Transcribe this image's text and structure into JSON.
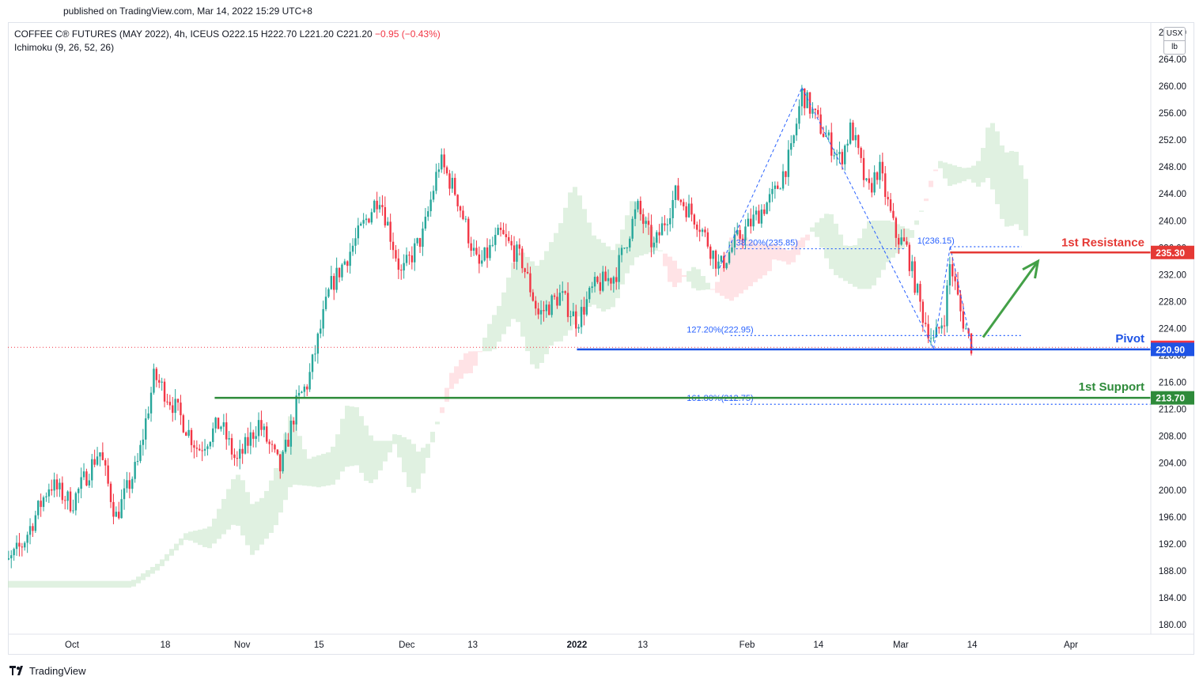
{
  "header": {
    "published": "published on TradingView.com, Mar 14, 2022 15:29 UTC+8"
  },
  "legend": {
    "symbol": "COFFEE C® FUTURES (MAY 2022), 4h, ICEUS",
    "open": "O222.15",
    "high": "H222.70",
    "low": "L221.20",
    "close": "C221.20",
    "change": "−0.95 (−0.43%)",
    "indicator": "Ichimoku (9, 26, 52, 26)"
  },
  "currency": {
    "unit1": "USX",
    "unit2": "lb"
  },
  "footer": {
    "brand": "TradingView"
  },
  "colors": {
    "up": "#089981",
    "upCandle": "#26a69a",
    "down": "#f23645",
    "resistance": "#e53935",
    "support": "#2e8b3a",
    "pivot": "#1e53e5",
    "fib": "#2962ff",
    "cloudBull": "#c8e6c9",
    "cloudBear": "#ffcdd2"
  },
  "chart_data": {
    "type": "candlestick",
    "title": "COFFEE C® FUTURES (MAY 2022), 4h, ICEUS",
    "ylim": [
      178,
      268
    ],
    "y_ticks": [
      180,
      184,
      188,
      192,
      196,
      200,
      204,
      208,
      212,
      216,
      220,
      224,
      228,
      232,
      236,
      240,
      244,
      248,
      252,
      256,
      260,
      264,
      268
    ],
    "y_tick_labels": [
      "180.00",
      "184.00",
      "188.00",
      "192.00",
      "196.00",
      "200.00",
      "204.00",
      "208.00",
      "212.00",
      "216.00",
      "220.00",
      "224.00",
      "228.00",
      "232.00",
      "236.00",
      "240.00",
      "244.00",
      "248.00",
      "252.00",
      "256.00",
      "260.00",
      "264.00",
      "268.00"
    ],
    "x_ticks": [
      {
        "date": "2021-10-01",
        "label": "Oct"
      },
      {
        "date": "2021-10-18",
        "label": "18"
      },
      {
        "date": "2021-11-01",
        "label": "Nov"
      },
      {
        "date": "2021-11-15",
        "label": "15"
      },
      {
        "date": "2021-12-01",
        "label": "Dec"
      },
      {
        "date": "2021-12-13",
        "label": "13"
      },
      {
        "date": "2022-01-01",
        "label": "2022"
      },
      {
        "date": "2022-01-13",
        "label": "13"
      },
      {
        "date": "2022-02-01",
        "label": "Feb"
      },
      {
        "date": "2022-02-14",
        "label": "14"
      },
      {
        "date": "2022-03-01",
        "label": "Mar"
      },
      {
        "date": "2022-03-14",
        "label": "14"
      },
      {
        "date": "2022-04-01",
        "label": "Apr"
      }
    ],
    "x_range": [
      "2021-09-17",
      "2022-04-22"
    ],
    "price_path": [
      {
        "date": "2021-09-17",
        "price": 186.5
      },
      {
        "date": "2021-09-22",
        "price": 192
      },
      {
        "date": "2021-09-27",
        "price": 201
      },
      {
        "date": "2021-10-01",
        "price": 198
      },
      {
        "date": "2021-10-06",
        "price": 206
      },
      {
        "date": "2021-10-09",
        "price": 196
      },
      {
        "date": "2021-10-13",
        "price": 204
      },
      {
        "date": "2021-10-16",
        "price": 217
      },
      {
        "date": "2021-10-20",
        "price": 212
      },
      {
        "date": "2021-10-24",
        "price": 206
      },
      {
        "date": "2021-10-28",
        "price": 210
      },
      {
        "date": "2021-10-31",
        "price": 204
      },
      {
        "date": "2021-11-04",
        "price": 210
      },
      {
        "date": "2021-11-08",
        "price": 203
      },
      {
        "date": "2021-11-11",
        "price": 213
      },
      {
        "date": "2021-11-13",
        "price": 216
      },
      {
        "date": "2021-11-17",
        "price": 230
      },
      {
        "date": "2021-11-21",
        "price": 236
      },
      {
        "date": "2021-11-26",
        "price": 244
      },
      {
        "date": "2021-11-30",
        "price": 232
      },
      {
        "date": "2021-12-04",
        "price": 238
      },
      {
        "date": "2021-12-07",
        "price": 249
      },
      {
        "date": "2021-12-10",
        "price": 244
      },
      {
        "date": "2021-12-14",
        "price": 233
      },
      {
        "date": "2021-12-18",
        "price": 238
      },
      {
        "date": "2021-12-22",
        "price": 234
      },
      {
        "date": "2021-12-25",
        "price": 226
      },
      {
        "date": "2021-12-29",
        "price": 229
      },
      {
        "date": "2022-01-01",
        "price": 225
      },
      {
        "date": "2022-01-04",
        "price": 230
      },
      {
        "date": "2022-01-08",
        "price": 232
      },
      {
        "date": "2022-01-12",
        "price": 242
      },
      {
        "date": "2022-01-15",
        "price": 236
      },
      {
        "date": "2022-01-19",
        "price": 244
      },
      {
        "date": "2022-01-23",
        "price": 240
      },
      {
        "date": "2022-01-27",
        "price": 233
      },
      {
        "date": "2022-01-30",
        "price": 237
      },
      {
        "date": "2022-02-02",
        "price": 240
      },
      {
        "date": "2022-02-06",
        "price": 244
      },
      {
        "date": "2022-02-09",
        "price": 250
      },
      {
        "date": "2022-02-11",
        "price": 259
      },
      {
        "date": "2022-02-15",
        "price": 253
      },
      {
        "date": "2022-02-18",
        "price": 249
      },
      {
        "date": "2022-02-20",
        "price": 254
      },
      {
        "date": "2022-02-23",
        "price": 244
      },
      {
        "date": "2022-02-25",
        "price": 248
      },
      {
        "date": "2022-02-28",
        "price": 238
      },
      {
        "date": "2022-03-02",
        "price": 236
      },
      {
        "date": "2022-03-05",
        "price": 226
      },
      {
        "date": "2022-03-07",
        "price": 222
      },
      {
        "date": "2022-03-09",
        "price": 226
      },
      {
        "date": "2022-03-10",
        "price": 234
      },
      {
        "date": "2022-03-12",
        "price": 226
      },
      {
        "date": "2022-03-14",
        "price": 221.2
      }
    ],
    "levels": [
      {
        "name": "1st Resistance",
        "price": 235.3,
        "label": "235.30"
      },
      {
        "name": "Pivot",
        "price": 220.9,
        "label": "220.90"
      },
      {
        "name": "1st Support",
        "price": 213.7,
        "label": "213.70"
      }
    ],
    "current_price": {
      "price": 221.2,
      "label": "221.20"
    },
    "fibonacci": [
      {
        "label": "38.20%(235.85)",
        "price": 235.85
      },
      {
        "label": "1(236.15)",
        "price": 236.15
      },
      {
        "label": "127.20%(222.95)",
        "price": 222.95
      },
      {
        "label": "161.80%(212.75)",
        "price": 212.75
      }
    ],
    "annotations": {
      "resistance_label": "1st Resistance",
      "pivot_label": "Pivot",
      "support_label": "1st Support"
    },
    "projection_arrow": {
      "from": {
        "date": "2022-03-16",
        "price": 222.7
      },
      "to": {
        "date": "2022-03-26",
        "price": 234
      }
    }
  }
}
